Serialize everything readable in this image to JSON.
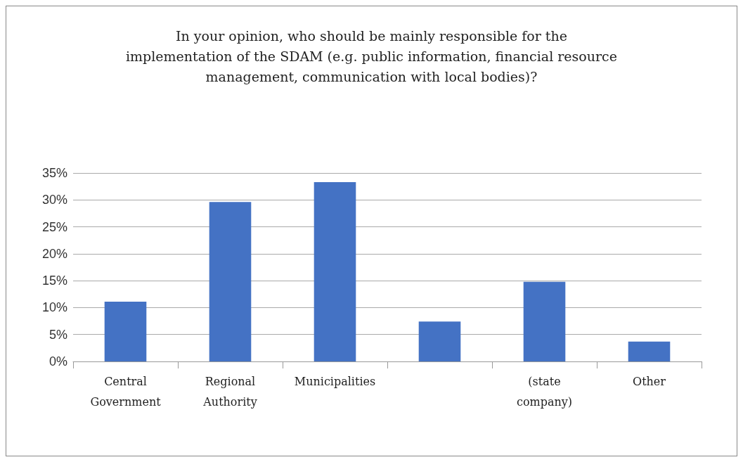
{
  "chart_data": {
    "type": "bar",
    "title": "In your opinion, who should be mainly responsible for the\nimplementation of the SDAM (e.g. public information, financial resource\nmanagement, communication with local bodies)?",
    "categories": [
      "Central\nGovernment",
      "Regional\nAuthority",
      "Municipalities",
      null,
      "(state\ncompany)",
      "Other"
    ],
    "values": [
      11.1,
      29.6,
      33.3,
      7.4,
      14.8,
      3.7
    ],
    "color": "#4472c4",
    "ylim": [
      0,
      35
    ],
    "yticks": [
      {
        "value": 0,
        "label": "0%"
      },
      {
        "value": 5,
        "label": "5%"
      },
      {
        "value": 10,
        "label": "10%"
      },
      {
        "value": 15,
        "label": "15%"
      },
      {
        "value": 20,
        "label": "20%"
      },
      {
        "value": 25,
        "label": "25%"
      },
      {
        "value": 30,
        "label": "30%"
      },
      {
        "value": 35,
        "label": "35%"
      }
    ],
    "grid": "y"
  }
}
